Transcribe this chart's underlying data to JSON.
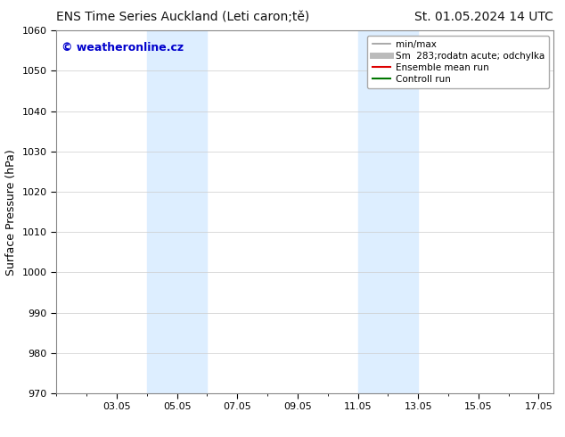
{
  "title_left": "ENS Time Series Auckland (Leti caron;tě)",
  "title_right": "St. 01.05.2024 14 UTC",
  "ylabel": "Surface Pressure (hPa)",
  "ylim": [
    970,
    1060
  ],
  "yticks": [
    970,
    980,
    990,
    1000,
    1010,
    1020,
    1030,
    1040,
    1050,
    1060
  ],
  "xlim": [
    1,
    17.5
  ],
  "xtick_labels": [
    "03.05",
    "05.05",
    "07.05",
    "09.05",
    "11.05",
    "13.05",
    "15.05",
    "17.05"
  ],
  "xtick_positions": [
    3,
    5,
    7,
    9,
    11,
    13,
    15,
    17
  ],
  "shade_regions": [
    {
      "x_start": 4.0,
      "x_end": 6.0,
      "color": "#ddeeff"
    },
    {
      "x_start": 11.0,
      "x_end": 13.0,
      "color": "#ddeeff"
    }
  ],
  "watermark_text": "© weatheronline.cz",
  "watermark_color": "#0000cc",
  "legend_entries": [
    {
      "label": "min/max",
      "color": "#999999",
      "lw": 1.2
    },
    {
      "label": "Sm  283;rodatn acute; odchylka",
      "color": "#bbbbbb",
      "lw": 5
    },
    {
      "label": "Ensemble mean run",
      "color": "#dd0000",
      "lw": 1.5
    },
    {
      "label": "Controll run",
      "color": "#007700",
      "lw": 1.5
    }
  ],
  "bg_color": "#ffffff",
  "plot_bg_color": "#ffffff",
  "title_fontsize": 10,
  "tick_fontsize": 8,
  "legend_fontsize": 7.5,
  "ylabel_fontsize": 9
}
